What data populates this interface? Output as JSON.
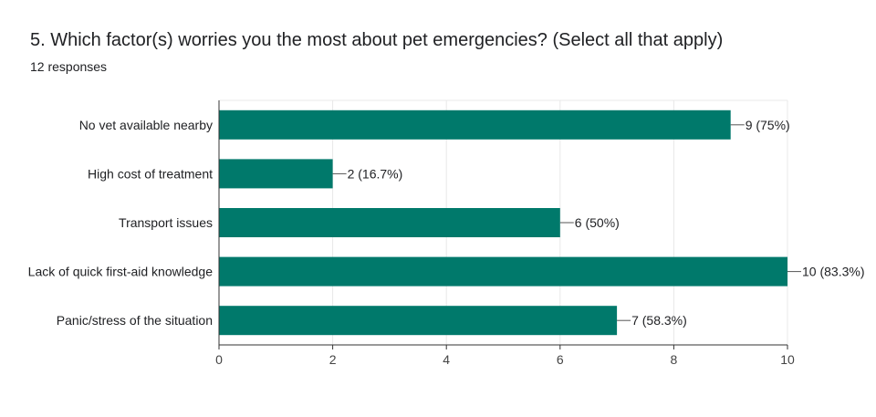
{
  "question": {
    "title": "5. Which factor(s) worries you the most about pet emergencies? (Select all that apply)",
    "responses": "12 responses"
  },
  "colors": {
    "bar": "#00796b",
    "grid": "#e8e8e8",
    "axis": "#333333"
  },
  "chart_data": {
    "type": "bar",
    "orientation": "horizontal",
    "categories": [
      "No vet available nearby",
      "High cost of treatment",
      "Transport issues",
      "Lack of quick first-aid knowledge",
      "Panic/stress of the situation"
    ],
    "values": [
      9,
      2,
      6,
      10,
      7
    ],
    "data_labels": [
      "9 (75%)",
      "2 (16.7%)",
      "6 (50%)",
      "10 (83.3%)",
      "7 (58.3%)"
    ],
    "xlim": [
      0,
      10
    ],
    "xticks": [
      0,
      2,
      4,
      6,
      8,
      10
    ],
    "grid": true,
    "legend": "none"
  }
}
